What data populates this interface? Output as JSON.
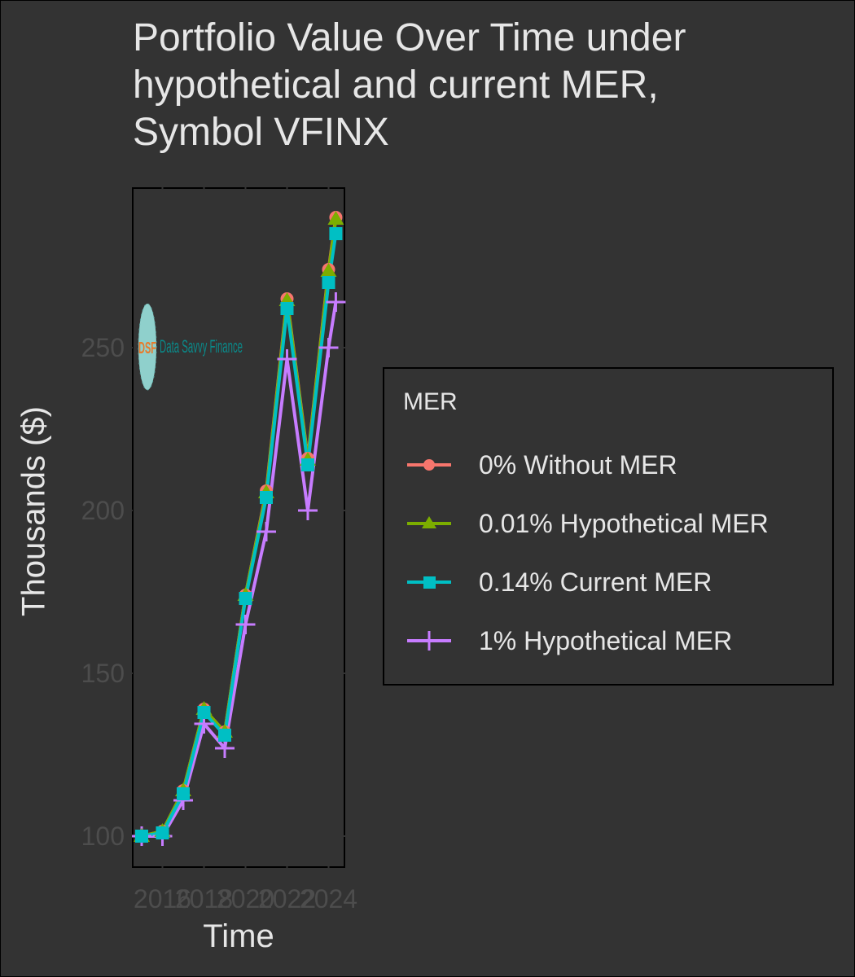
{
  "title": "Portfolio Value Over Time under hypothetical and current MER, Symbol VFINX",
  "title_lines": [
    "Portfolio Value Over Time under",
    "hypothetical and current MER,",
    "Symbol VFINX"
  ],
  "xlabel": "Time",
  "ylabel": "Thousands ($)",
  "watermark": {
    "initials": "DSF",
    "text": "Data Savvy Finance"
  },
  "legend": {
    "title": "MER",
    "items": [
      {
        "label": "0% Without MER",
        "color": "#F8766D",
        "marker": "circle"
      },
      {
        "label": "0.01% Hypothetical MER",
        "color": "#7CAE00",
        "marker": "triangle"
      },
      {
        "label": "0.14% Current MER",
        "color": "#00BFC4",
        "marker": "square"
      },
      {
        "label": "1% Hypothetical MER",
        "color": "#C77CFF",
        "marker": "cross"
      }
    ]
  },
  "chart_data": {
    "type": "line",
    "title": "Portfolio Value Over Time under hypothetical and current MER, Symbol VFINX",
    "xlabel": "Time",
    "ylabel": "Thousands ($)",
    "x": [
      2015,
      2016,
      2017,
      2018,
      2019,
      2020,
      2021,
      2022,
      2023,
      2024,
      2024.35
    ],
    "x_ticks": [
      2016,
      2018,
      2020,
      2022,
      2024
    ],
    "y_ticks": [
      100,
      150,
      200,
      250
    ],
    "xlim": [
      2014.6,
      2024.8
    ],
    "ylim": [
      91,
      299
    ],
    "grid": false,
    "legend_position": "right",
    "series": [
      {
        "name": "0% Without MER",
        "color": "#F8766D",
        "marker": "circle",
        "values": [
          100,
          101.5,
          114,
          139,
          132,
          174,
          206,
          265,
          216,
          274,
          290
        ]
      },
      {
        "name": "0.01% Hypothetical MER",
        "color": "#7CAE00",
        "marker": "triangle",
        "values": [
          100,
          101.5,
          114,
          139,
          132,
          174,
          205.5,
          264.5,
          215.5,
          273.5,
          289.5
        ]
      },
      {
        "name": "0.14% Current MER",
        "color": "#00BFC4",
        "marker": "square",
        "values": [
          100,
          101,
          113,
          138,
          131,
          173,
          204,
          262,
          214,
          270,
          285
        ]
      },
      {
        "name": "1% Hypothetical MER",
        "color": "#C77CFF",
        "marker": "cross",
        "values": [
          100,
          100,
          111,
          134.5,
          127,
          165,
          193.5,
          246.5,
          200,
          250,
          264
        ]
      }
    ]
  }
}
